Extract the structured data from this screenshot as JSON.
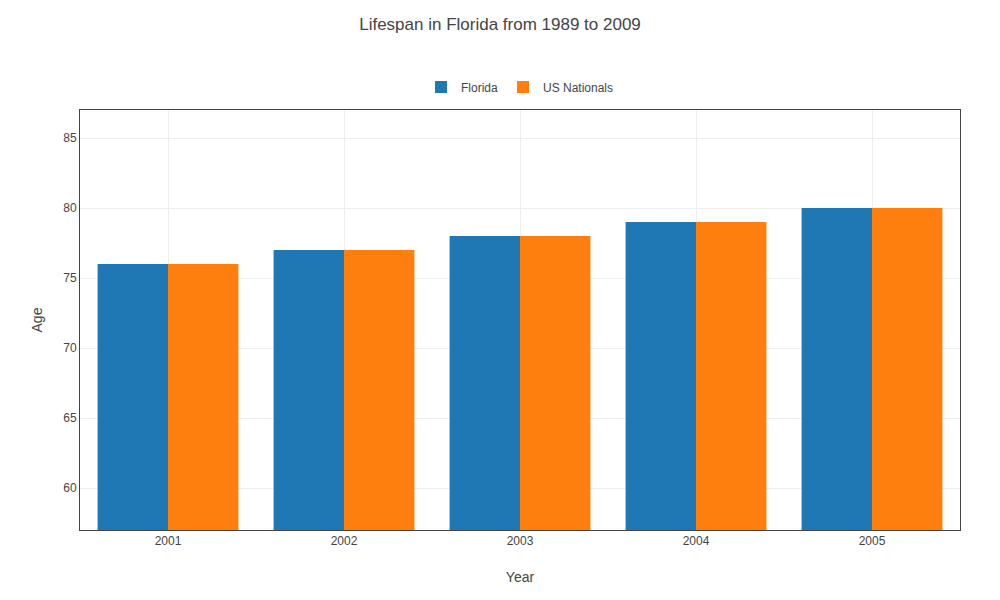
{
  "chart_data": {
    "type": "bar",
    "title": "Lifespan in Florida from 1989 to 2009",
    "xlabel": "Year",
    "ylabel": "Age",
    "categories": [
      "2001",
      "2002",
      "2003",
      "2004",
      "2005"
    ],
    "series": [
      {
        "name": "Florida",
        "values": [
          76,
          77,
          78,
          79,
          80
        ]
      },
      {
        "name": "US Nationals",
        "values": [
          76,
          77,
          78,
          79,
          80
        ]
      }
    ],
    "ylim": [
      57,
      87
    ],
    "yticks": [
      60,
      65,
      70,
      75,
      80,
      85
    ],
    "grid": true,
    "legend": "top"
  }
}
